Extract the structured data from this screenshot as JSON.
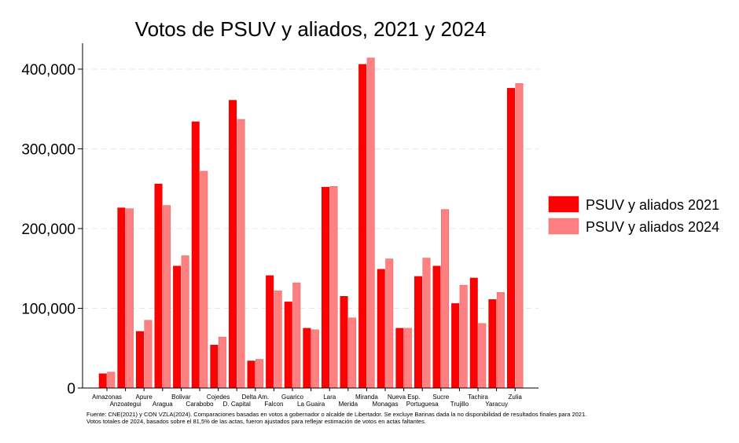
{
  "chart_data": {
    "type": "bar",
    "title": "Votos de PSUV y aliados, 2021 y 2024",
    "xlabel": "",
    "ylabel": "",
    "ylim": [
      0,
      430000
    ],
    "yticks": [
      0,
      100000,
      200000,
      300000,
      400000
    ],
    "ytick_labels": [
      "0",
      "100,000",
      "200,000",
      "300,000",
      "400,000"
    ],
    "grid": true,
    "legend_position": "right",
    "categories": [
      "Amazonas",
      "Anzoategui",
      "Apure",
      "Aragua",
      "Bolivar",
      "Carabobo",
      "Cojedes",
      "D. Capital",
      "Delta Am.",
      "Falcon",
      "Guarico",
      "La Guaira",
      "Lara",
      "Merida",
      "Miranda",
      "Monagas",
      "Nueva Esp.",
      "Portuguesa",
      "Sucre",
      "Trujillo",
      "Tachira",
      "Yaracuy",
      "Zulia"
    ],
    "series": [
      {
        "name": "PSUV y aliados 2021",
        "color": "#ff0000",
        "values": [
          18000,
          226000,
          71000,
          256000,
          153000,
          334000,
          54000,
          361000,
          34000,
          141000,
          108000,
          75000,
          252000,
          115000,
          406000,
          149000,
          75000,
          140000,
          153000,
          106000,
          138000,
          111000,
          376000
        ]
      },
      {
        "name": "PSUV y aliados 2024",
        "color": "#ff8080",
        "values": [
          20000,
          225000,
          85000,
          229000,
          166000,
          272000,
          64000,
          337000,
          36000,
          122000,
          132000,
          73000,
          253000,
          88000,
          414000,
          162000,
          75000,
          163000,
          224000,
          129000,
          81000,
          120000,
          382000
        ]
      }
    ],
    "footnote": [
      "Fuente: CNE(2021) y CON VZLA(2024). Comparaciones basadas en votos a gobernador o alcalde de Libertador. Se excluye Barinas dada la no disponibilidad de resultados finales para 2021.",
      "Votos totales de 2024, basados sobre el 81,5% de las actas, fueron ajustados para reflejar estimación de votos en actas faltantes."
    ]
  }
}
